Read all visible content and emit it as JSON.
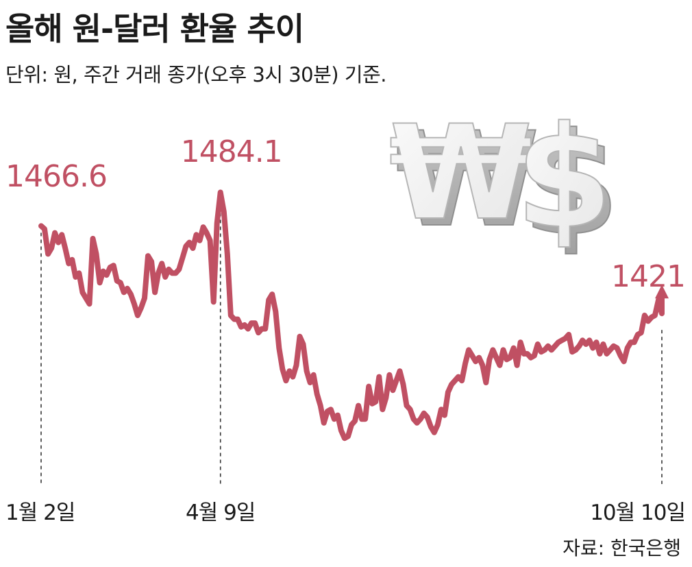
{
  "title": "올해 원-달러 환율 추이",
  "subtitle": "단위: 원, 주간 거래 종가(오후 3시 30분) 기준.",
  "source": "자료: 한국은행",
  "colors": {
    "line": "#c05063",
    "text": "#1a1a1a"
  },
  "icon": "won-dollar-3d-symbols",
  "chart_data": {
    "type": "line",
    "title": "올해 원-달러 환율 추이",
    "subtitle": "단위: 원, 주간 거래 종가(오후 3시 30분) 기준.",
    "xlabel": "",
    "ylabel": "",
    "ylim": [
      1350,
      1500
    ],
    "grid": false,
    "legend": "none",
    "tick_labels": [
      "1월 2일",
      "4월 9일",
      "10월 10일"
    ],
    "annotations": [
      {
        "label": "1466.6",
        "x": "1월 2일",
        "value": 1466.6
      },
      {
        "label": "1484.1",
        "x": "4월 9일",
        "value": 1484.1
      },
      {
        "label": "1421",
        "x": "10월 10일",
        "value": 1421
      }
    ],
    "series": [
      {
        "values": [
          1466.6,
          1465,
          1452,
          1455,
          1463,
          1458,
          1462,
          1455,
          1447,
          1449,
          1440,
          1442,
          1432,
          1429,
          1426,
          1460,
          1452,
          1437,
          1443,
          1441,
          1445,
          1446,
          1438,
          1437,
          1432,
          1434,
          1431,
          1426,
          1420,
          1424,
          1429,
          1451,
          1448,
          1432,
          1442,
          1447,
          1440,
          1444,
          1442,
          1442,
          1444,
          1450,
          1456,
          1458,
          1455,
          1462,
          1459,
          1466,
          1463,
          1459,
          1427,
          1468,
          1484.1,
          1474,
          1452,
          1420,
          1418,
          1418,
          1414,
          1415,
          1413,
          1416,
          1416,
          1411,
          1413,
          1413,
          1428,
          1431,
          1422,
          1403,
          1392,
          1386,
          1391,
          1388,
          1394,
          1409,
          1405,
          1391,
          1385,
          1389,
          1379,
          1373,
          1364,
          1370,
          1371,
          1366,
          1368,
          1360,
          1356,
          1357,
          1363,
          1365,
          1373,
          1366,
          1366,
          1383,
          1374,
          1375,
          1388,
          1371,
          1377,
          1389,
          1381,
          1386,
          1391,
          1384,
          1373,
          1371,
          1366,
          1364,
          1366,
          1369,
          1367,
          1362,
          1359,
          1363,
          1371,
          1368,
          1380,
          1384,
          1386,
          1388,
          1386,
          1395,
          1402,
          1399,
          1396,
          1398,
          1394,
          1385,
          1397,
          1402,
          1398,
          1394,
          1402,
          1397,
          1398,
          1403,
          1394,
          1406,
          1400,
          1400,
          1398,
          1399,
          1405,
          1401,
          1402,
          1404,
          1402,
          1404,
          1406,
          1407,
          1408,
          1410,
          1401,
          1402,
          1404,
          1407,
          1405,
          1407,
          1403,
          1406,
          1400,
          1405,
          1400,
          1402,
          1404,
          1403,
          1399,
          1396,
          1403,
          1406,
          1406,
          1410,
          1411,
          1420,
          1417,
          1419,
          1420,
          1428,
          1421
        ]
      }
    ]
  }
}
